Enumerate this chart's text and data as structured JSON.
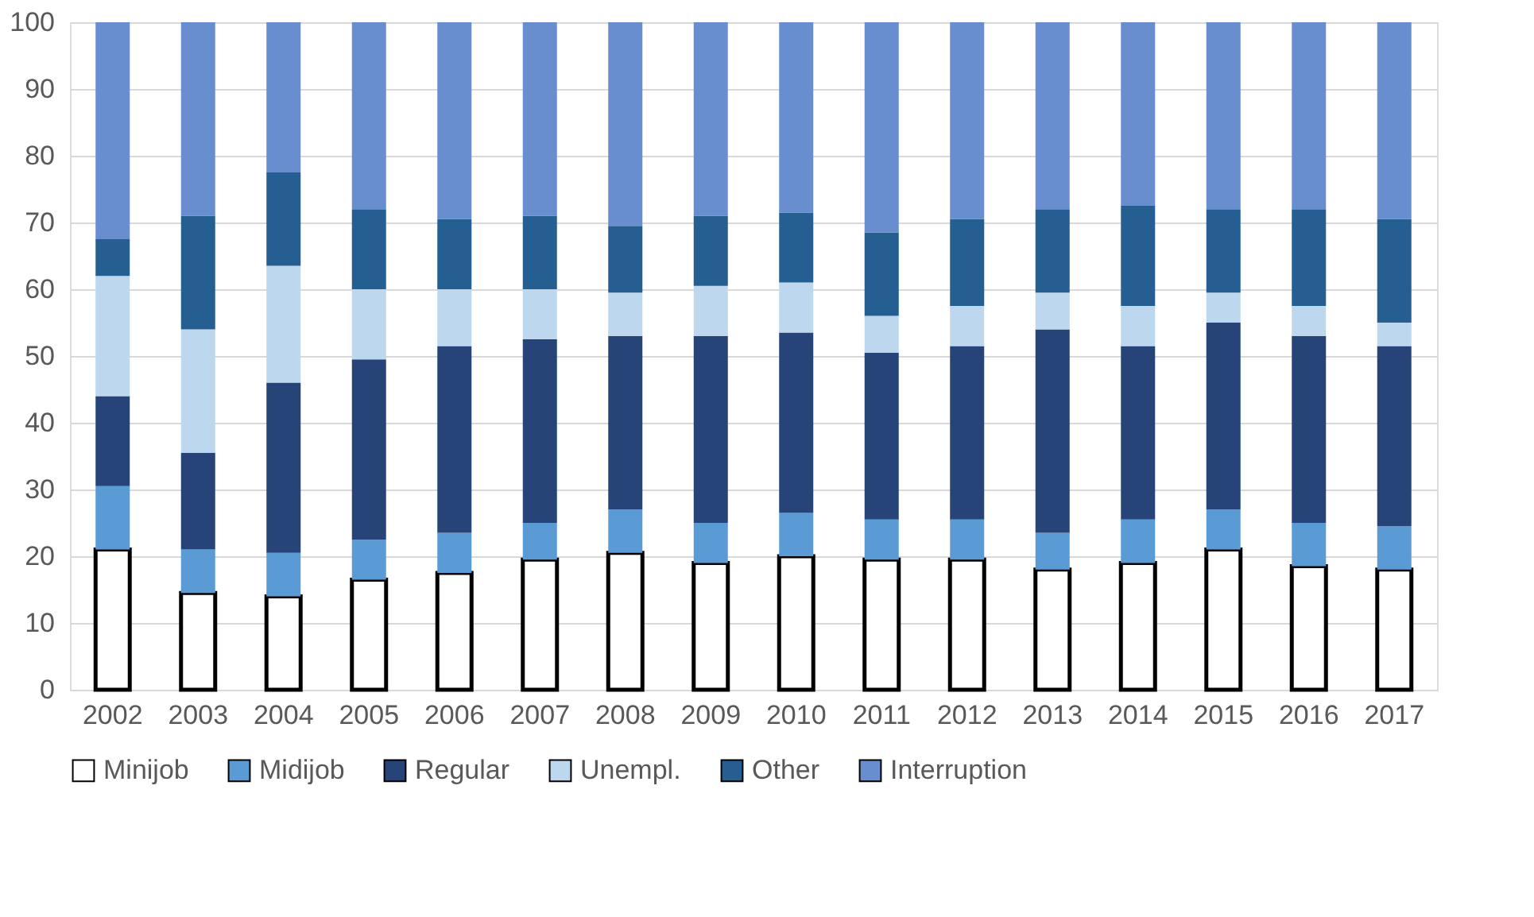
{
  "chart_data": {
    "type": "bar",
    "stacked": true,
    "categories": [
      "2002",
      "2003",
      "2004",
      "2005",
      "2006",
      "2007",
      "2008",
      "2009",
      "2010",
      "2011",
      "2012",
      "2013",
      "2014",
      "2015",
      "2016",
      "2017"
    ],
    "series": [
      {
        "name": "Minijob",
        "color": "#ffffff",
        "values": [
          21,
          14.5,
          14,
          16.5,
          17.5,
          19.5,
          20.5,
          19,
          20,
          19.5,
          19.5,
          18,
          19,
          21,
          18.5,
          18
        ]
      },
      {
        "name": "Midijob",
        "color": "#5b9bd5",
        "values": [
          9.5,
          6.5,
          6.5,
          6,
          6,
          5.5,
          6.5,
          6,
          6.5,
          6,
          6,
          5.5,
          6.5,
          6,
          6.5,
          6.5
        ]
      },
      {
        "name": "Regular",
        "color": "#264478",
        "values": [
          13.5,
          14.5,
          25.5,
          27,
          28,
          27.5,
          26,
          28,
          27,
          25,
          26,
          30.5,
          26,
          28,
          28,
          27
        ]
      },
      {
        "name": "Unempl.",
        "color": "#bdd7ee",
        "values": [
          18,
          18.5,
          17.5,
          10.5,
          8.5,
          7.5,
          6.5,
          7.5,
          7.5,
          5.5,
          6,
          5.5,
          6,
          4.5,
          4.5,
          3.5
        ]
      },
      {
        "name": "Other",
        "color": "#255e91",
        "values": [
          5.5,
          17,
          14,
          12,
          10.5,
          11,
          10,
          10.5,
          10.5,
          12.5,
          13,
          12.5,
          15,
          12.5,
          14.5,
          15.5
        ]
      },
      {
        "name": "Interruption",
        "color": "#698ed0",
        "values": [
          32.5,
          29,
          22.5,
          28,
          29.5,
          29,
          30.5,
          29,
          28.5,
          31.5,
          29.5,
          28,
          27.5,
          28,
          28,
          29.5
        ]
      }
    ],
    "ylim": [
      0,
      100
    ],
    "yticks": [
      0,
      10,
      20,
      30,
      40,
      50,
      60,
      70,
      80,
      90,
      100
    ],
    "grid": "y",
    "legend": "bottom"
  }
}
